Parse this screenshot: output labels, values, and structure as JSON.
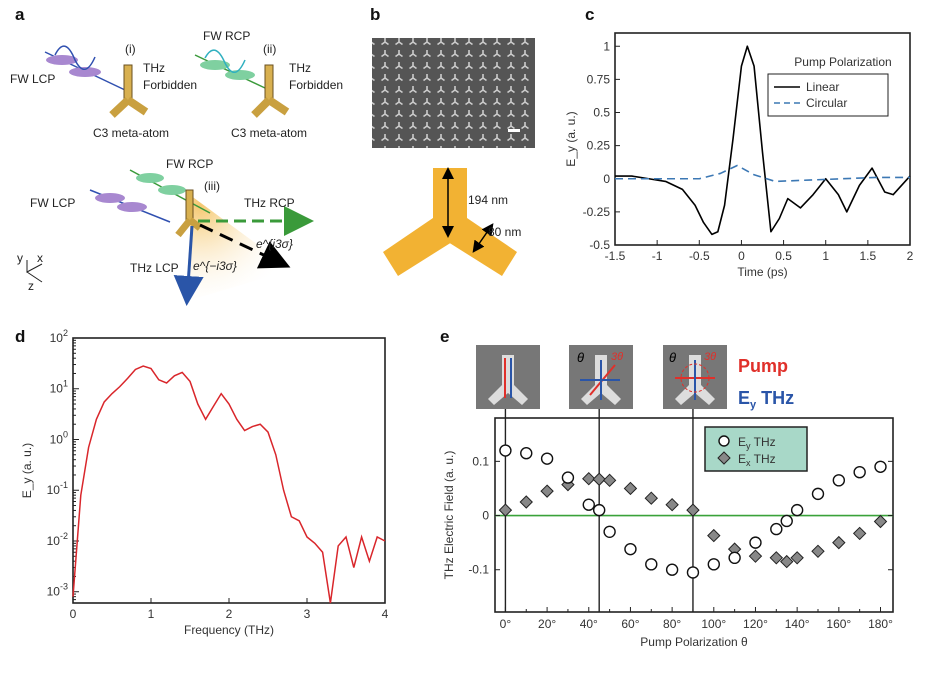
{
  "panels": {
    "a": "a",
    "b": "b",
    "c": "c",
    "d": "d",
    "e": "e"
  },
  "panel_a": {
    "fw_lcp_1": "FW LCP",
    "label_i": "(i)",
    "thz_1": "THz",
    "forbidden_1": "Forbidden",
    "meta_1": "C3 meta-atom",
    "fw_rcp_2": "FW RCP",
    "label_ii": "(ii)",
    "thz_2": "THz",
    "forbidden_2": "Forbidden",
    "meta_2": "C3 meta-atom",
    "fw_rcp_3": "FW RCP",
    "fw_lcp_3": "FW LCP",
    "label_iii": "(iii)",
    "thz_rcp": "THz RCP",
    "thz_lcp": "THz LCP",
    "phase_pos": "e^{i3σ}",
    "phase_neg": "e^{−i3σ}",
    "axis_y": "y",
    "axis_x": "x",
    "axis_z": "z"
  },
  "panel_b": {
    "dim_length": "194 nm",
    "dim_width": "80 nm"
  },
  "colors": {
    "gold": "#f2b233",
    "linear": "#000000",
    "circular": "#3c78b4",
    "spectrum": "#d9262b",
    "zero_line": "#3aa23a",
    "legend_bg": "#a8d8c8",
    "pump": "#e0302a",
    "thz": "#2a55a8"
  },
  "inset_labels": {
    "pump": "Pump",
    "ey_thz": "E",
    "ey_sub": "y",
    "ey_thz_rest": " THz",
    "theta": "θ",
    "angle2": "θ",
    "sigma_label": "3θ"
  },
  "chart_data": [
    {
      "panel": "c",
      "type": "line",
      "xlabel": "Time (ps)",
      "ylabel": "E_y (a. u.)",
      "xlim": [
        -1.5,
        2
      ],
      "ylim": [
        -0.5,
        1.1
      ],
      "xticks": [
        "-1.5",
        "-1",
        "-0.5",
        "0",
        "0.5",
        "1",
        "1.5",
        "2"
      ],
      "yticks": [
        "1",
        "0.75",
        "0.5",
        "0.25",
        "0",
        "-0.25",
        "-0.5"
      ],
      "legend_title": "Pump Polarization",
      "legend_position": "top-right",
      "series": [
        {
          "name": "Linear",
          "style": "solid",
          "x": [
            -1.5,
            -1.3,
            -1.1,
            -0.9,
            -0.7,
            -0.55,
            -0.45,
            -0.35,
            -0.28,
            -0.2,
            -0.1,
            0,
            0.07,
            0.15,
            0.25,
            0.35,
            0.45,
            0.55,
            0.7,
            0.85,
            1,
            1.15,
            1.25,
            1.4,
            1.55,
            1.7,
            1.8,
            2
          ],
          "y": [
            0.02,
            0.02,
            0.0,
            -0.02,
            -0.08,
            -0.2,
            -0.33,
            -0.42,
            -0.4,
            -0.2,
            0.3,
            0.85,
            1.0,
            0.85,
            0.2,
            -0.4,
            -0.3,
            -0.15,
            -0.22,
            -0.12,
            0.0,
            -0.12,
            -0.25,
            -0.05,
            0.08,
            -0.1,
            -0.12,
            0.02
          ]
        },
        {
          "name": "Circular",
          "style": "dashed",
          "x": [
            -1.5,
            -1,
            -0.5,
            -0.25,
            -0.05,
            0.15,
            0.4,
            0.8,
            1.2,
            1.6,
            2
          ],
          "y": [
            0.0,
            0.0,
            0.0,
            0.04,
            0.1,
            0.03,
            -0.02,
            -0.01,
            0.0,
            0.01,
            0.01
          ]
        }
      ]
    },
    {
      "panel": "d",
      "type": "line",
      "xlabel": "Frequency (THz)",
      "ylabel": "E_y (a. u.)",
      "yscale": "log",
      "xlim": [
        0,
        4
      ],
      "ylim": [
        0.0006,
        100
      ],
      "xticks": [
        "0",
        "1",
        "2",
        "3",
        "4"
      ],
      "yticks": [
        "10^2",
        "10^1",
        "10^0",
        "10^-1",
        "10^-2",
        "10^-3"
      ],
      "series": [
        {
          "x": [
            0,
            0.1,
            0.2,
            0.3,
            0.4,
            0.5,
            0.6,
            0.7,
            0.8,
            0.9,
            1.0,
            1.1,
            1.2,
            1.3,
            1.4,
            1.5,
            1.6,
            1.7,
            1.8,
            1.9,
            2.0,
            2.1,
            2.2,
            2.3,
            2.4,
            2.5,
            2.6,
            2.7,
            2.8,
            2.9,
            3.0,
            3.1,
            3.2,
            3.3,
            3.4,
            3.5,
            3.6,
            3.7,
            3.8,
            3.9,
            4.0
          ],
          "y": [
            0.0008,
            0.08,
            0.7,
            2.5,
            5.5,
            8,
            11,
            16,
            24,
            28,
            25,
            15,
            13,
            18,
            21,
            14,
            5,
            2.5,
            4.5,
            8,
            5,
            2.5,
            1.5,
            1.8,
            2,
            1.4,
            0.5,
            0.1,
            0.03,
            0.025,
            0.012,
            0.009,
            0.006,
            0.0006,
            0.008,
            0.012,
            0.003,
            0.012,
            0.004,
            0.012,
            0.01
          ]
        }
      ]
    },
    {
      "panel": "e",
      "type": "scatter",
      "xlabel": "Pump Polarization θ",
      "ylabel": "THz Electric Field (a. u.)",
      "xlim": [
        -5,
        186
      ],
      "ylim": [
        -0.178,
        0.18
      ],
      "xticks": [
        "0°",
        "20°",
        "40°",
        "60°",
        "80°",
        "100°",
        "120°",
        "140°",
        "160°",
        "180°"
      ],
      "yticks": [
        "0.1",
        "0",
        "-0.1"
      ],
      "legend_position": "top-right",
      "vlines": [
        0,
        45,
        90
      ],
      "series": [
        {
          "name": "E_y THz",
          "marker": "open-circle",
          "x": [
            0,
            10,
            20,
            30,
            40,
            45,
            50,
            60,
            70,
            80,
            90,
            100,
            110,
            120,
            130,
            135,
            140,
            150,
            160,
            170,
            180
          ],
          "y": [
            0.12,
            0.115,
            0.105,
            0.07,
            0.02,
            0.01,
            -0.03,
            -0.062,
            -0.09,
            -0.1,
            -0.105,
            -0.09,
            -0.078,
            -0.05,
            -0.025,
            -0.01,
            0.01,
            0.04,
            0.065,
            0.08,
            0.09
          ]
        },
        {
          "name": "E_x THz",
          "marker": "gray-diamond",
          "x": [
            0,
            10,
            20,
            30,
            40,
            45,
            50,
            60,
            70,
            80,
            90,
            100,
            110,
            120,
            130,
            135,
            140,
            150,
            160,
            170,
            180
          ],
          "y": [
            0.01,
            0.025,
            0.045,
            0.057,
            0.068,
            0.067,
            0.065,
            0.05,
            0.032,
            0.02,
            0.01,
            -0.037,
            -0.062,
            -0.075,
            -0.078,
            -0.085,
            -0.078,
            -0.066,
            -0.05,
            -0.033,
            -0.011
          ]
        }
      ]
    }
  ]
}
